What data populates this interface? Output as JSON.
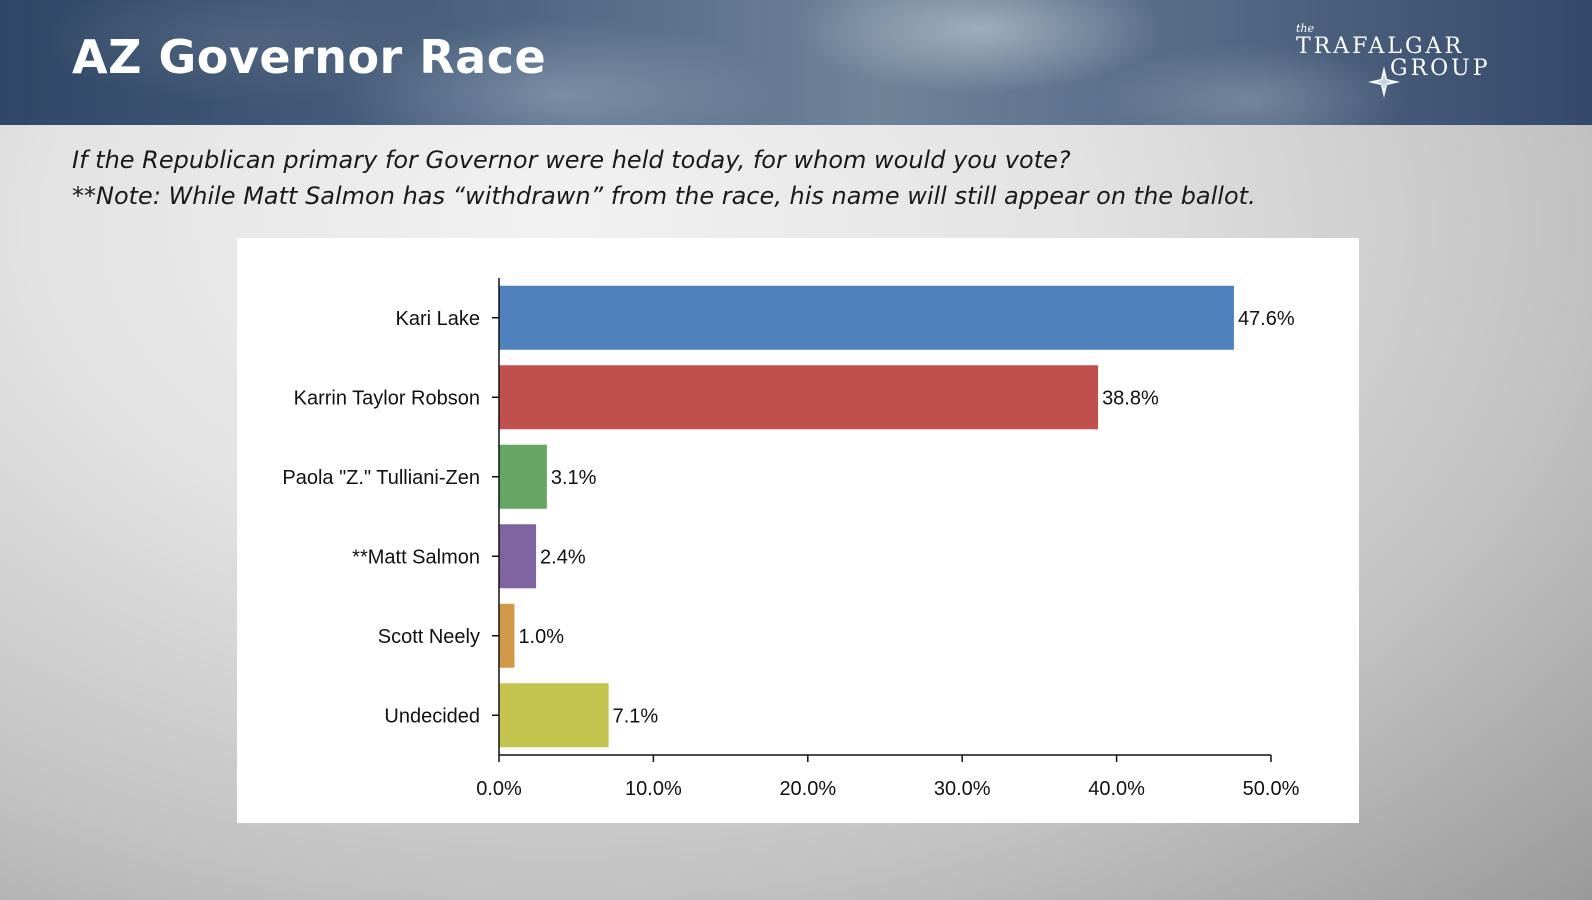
{
  "header": {
    "title": "AZ Governor Race",
    "logo": {
      "the": "the",
      "word1": "TRAFALGAR",
      "word2": "GROUP",
      "icon": "compass-star-icon"
    }
  },
  "question": {
    "line1": "If the Republican primary for Governor were held today, for whom would you vote?",
    "line2": "**Note: While Matt Salmon has “withdrawn” from the race, his name will still appear on the ballot."
  },
  "chart_data": {
    "type": "bar",
    "orientation": "horizontal",
    "title": "",
    "xlabel": "",
    "ylabel": "",
    "xlim": [
      0,
      50
    ],
    "ticks": [
      0,
      10,
      20,
      30,
      40,
      50
    ],
    "tick_labels": [
      "0.0%",
      "10.0%",
      "20.0%",
      "30.0%",
      "40.0%",
      "50.0%"
    ],
    "grid": false,
    "legend": "none",
    "categories": [
      "Kari Lake",
      "Karrin Taylor Robson",
      "Paola \"Z.\" Tulliani-Zen",
      "**Matt Salmon",
      "Scott Neely",
      "Undecided"
    ],
    "values": [
      47.6,
      38.8,
      3.1,
      2.4,
      1.0,
      7.1
    ],
    "value_labels": [
      "47.6%",
      "38.8%",
      "3.1%",
      "2.4%",
      "1.0%",
      "7.1%"
    ],
    "colors": [
      "#4f81bd",
      "#c0504d",
      "#65a663",
      "#8064a2",
      "#d19a49",
      "#c5c44e"
    ]
  }
}
